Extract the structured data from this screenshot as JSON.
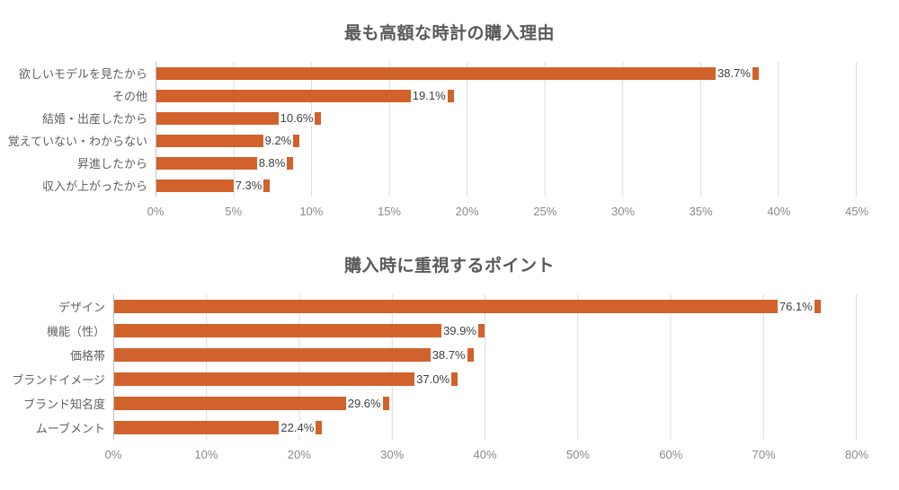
{
  "colors": {
    "bar": "#D2622B",
    "title_text": "#595959",
    "category_text": "#616161",
    "axis_text": "#8A8A8A",
    "value_text": "#404040",
    "value_background": "#FFFFFF",
    "gridline": "#DBDBDB",
    "axis_line": "#BFBFBF"
  },
  "chart_data": [
    {
      "type": "bar",
      "orientation": "horizontal",
      "title": "最も高額な時計の購入理由",
      "categories": [
        "欲しいモデルを見たから",
        "その他",
        "結婚・出産したから",
        "覚えていない・わからない",
        "昇進したから",
        "収入が上がったから"
      ],
      "values": [
        38.7,
        19.1,
        10.6,
        9.2,
        8.8,
        7.3
      ],
      "value_labels": [
        "38.7%",
        "19.1%",
        "10.6%",
        "9.2%",
        "8.8%",
        "7.3%"
      ],
      "xlabel": "",
      "ylabel": "",
      "xlim": [
        0,
        45
      ],
      "x_ticks": [
        "0%",
        "5%",
        "10%",
        "15%",
        "20%",
        "25%",
        "30%",
        "35%",
        "40%",
        "45%"
      ],
      "grid": true,
      "legend": false,
      "value_label_position": "inside-end"
    },
    {
      "type": "bar",
      "orientation": "horizontal",
      "title": "購入時に重視するポイント",
      "categories": [
        "デザイン",
        "機能（性）",
        "価格帯",
        "ブランドイメージ",
        "ブランド知名度",
        "ムーブメント"
      ],
      "values": [
        76.1,
        39.9,
        38.7,
        37.0,
        29.6,
        22.4
      ],
      "value_labels": [
        "76.1%",
        "39.9%",
        "38.7%",
        "37.0%",
        "29.6%",
        "22.4%"
      ],
      "xlabel": "",
      "ylabel": "",
      "xlim": [
        0,
        80
      ],
      "x_ticks": [
        "0%",
        "10%",
        "20%",
        "30%",
        "40%",
        "50%",
        "60%",
        "70%",
        "80%"
      ],
      "grid": true,
      "legend": false,
      "value_label_position": "inside-end"
    }
  ]
}
